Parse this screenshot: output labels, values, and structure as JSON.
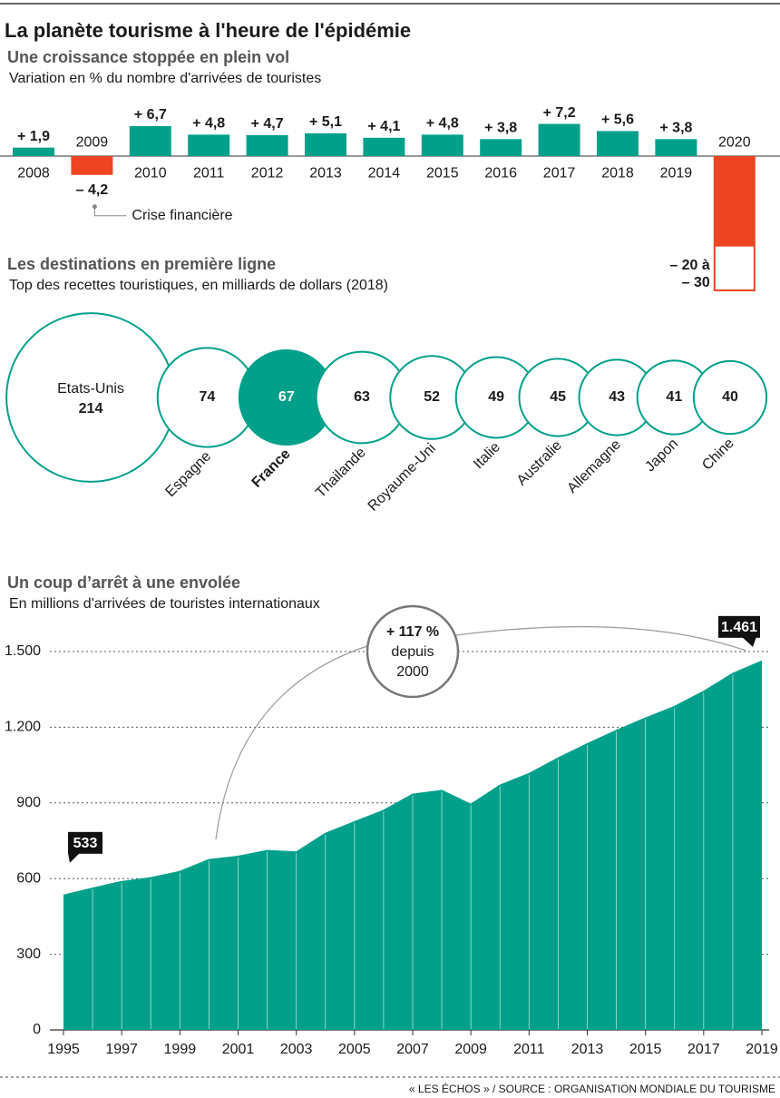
{
  "title": "La planète tourisme à l'heure de l'épidémie",
  "source": "« LES ÉCHOS » / SOURCE : ORGANISATION MONDIALE DU TOURISME",
  "chart_data": [
    {
      "type": "bar",
      "title": "Une croissance stoppée en plein vol",
      "subtitle": "Variation en % du nombre d'arrivées de touristes",
      "categories": [
        "2008",
        "2009",
        "2010",
        "2011",
        "2012",
        "2013",
        "2014",
        "2015",
        "2016",
        "2017",
        "2018",
        "2019",
        "2020"
      ],
      "values": [
        1.9,
        -4.2,
        6.7,
        4.8,
        4.7,
        5.1,
        4.1,
        4.8,
        3.8,
        7.2,
        5.6,
        3.8,
        -20
      ],
      "range_to": [
        null,
        null,
        null,
        null,
        null,
        null,
        null,
        null,
        null,
        null,
        null,
        null,
        -30
      ],
      "value_labels": [
        "+ 1,9",
        "– 4,2",
        "+ 6,7",
        "+ 4,8",
        "+ 4,7",
        "+ 5,1",
        "+ 4,1",
        "+ 4,8",
        "+ 3,8",
        "+ 7,2",
        "+ 5,6",
        "+ 3,8",
        "– 20 à – 30"
      ],
      "annotation": "Crise financière",
      "ylim": [
        -30,
        8
      ],
      "color": "#00a08a",
      "negative_color": "#ee4423"
    },
    {
      "type": "bubble",
      "title": "Les destinations en première ligne",
      "subtitle": "Top des recettes touristiques, en milliards de dollars (2018)",
      "categories": [
        "Etats-Unis",
        "Espagne",
        "France",
        "Thailande",
        "Royaume-Uni",
        "Italie",
        "Australie",
        "Allemagne",
        "Japon",
        "Chine"
      ],
      "values": [
        214,
        74,
        67,
        63,
        52,
        49,
        45,
        43,
        41,
        40
      ],
      "colors": [
        "#ffffff",
        "#ffffff",
        "#00a08a",
        "#ffffff",
        "#ffffff",
        "#ffffff",
        "#ffffff",
        "#ffffff",
        "#ffffff",
        "#ffffff"
      ],
      "stroke": "#00a08a"
    },
    {
      "type": "area",
      "title": "Un coup d’arrêt à une envolée",
      "subtitle": "En millions d'arrivées de touristes internationaux",
      "x": [
        1995,
        1996,
        1997,
        1998,
        1999,
        2000,
        2001,
        2002,
        2003,
        2004,
        2005,
        2006,
        2007,
        2008,
        2009,
        2010,
        2011,
        2012,
        2013,
        2014,
        2015,
        2016,
        2017,
        2018,
        2019
      ],
      "values": [
        533,
        561,
        587,
        602,
        627,
        674,
        687,
        710,
        704,
        778,
        824,
        869,
        933,
        948,
        893,
        969,
        1015,
        1077,
        1133,
        1186,
        1235,
        1281,
        1341,
        1412,
        1461
      ],
      "value_labels": [
        null,
        null,
        null,
        null,
        null,
        null,
        null,
        null,
        null,
        null,
        null,
        null,
        null,
        null,
        null,
        null,
        null,
        null,
        null,
        null,
        null,
        null,
        null,
        null,
        "1.461"
      ],
      "annotation": [
        "+ 117 %",
        "depuis",
        "2000"
      ],
      "xlim": [
        1995,
        2019
      ],
      "xticks": [
        1995,
        1997,
        1999,
        2001,
        2003,
        2005,
        2007,
        2009,
        2011,
        2013,
        2015,
        2017,
        2019
      ],
      "ylim": [
        0,
        1500
      ],
      "yticks": [
        0,
        300,
        600,
        900,
        {
          "value": 1200,
          "label": "1.200"
        },
        {
          "value": 1500,
          "label": "1.500"
        }
      ],
      "grid": true,
      "color": "#00a08a"
    }
  ]
}
